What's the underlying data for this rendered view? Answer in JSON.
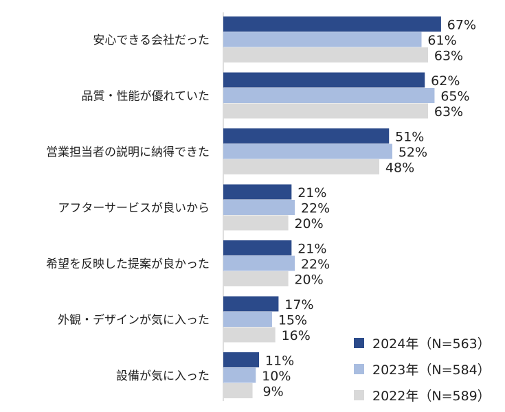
{
  "chart_data": {
    "type": "bar",
    "orientation": "horizontal",
    "title": "",
    "xlabel": "",
    "ylabel": "",
    "xlim": [
      0,
      100
    ],
    "value_suffix": "%",
    "grid": false,
    "legend_position": "bottom-right",
    "categories": [
      "安心できる会社だった",
      "品質・性能が優れていた",
      "営業担当者の説明に納得できた",
      "アフターサービスが良いから",
      "希望を反映した提案が良かった",
      "外観・デザインが気に入った",
      "設備が気に入った"
    ],
    "series": [
      {
        "name": "2024年（N=563）",
        "color": "#2b4a8a",
        "values": [
          67,
          62,
          51,
          21,
          21,
          17,
          11
        ]
      },
      {
        "name": "2023年（N=584）",
        "color": "#a9bde0",
        "values": [
          61,
          65,
          52,
          22,
          22,
          15,
          10
        ]
      },
      {
        "name": "2022年（N=589）",
        "color": "#d9d9d9",
        "values": [
          63,
          63,
          48,
          20,
          20,
          16,
          9
        ]
      }
    ]
  }
}
